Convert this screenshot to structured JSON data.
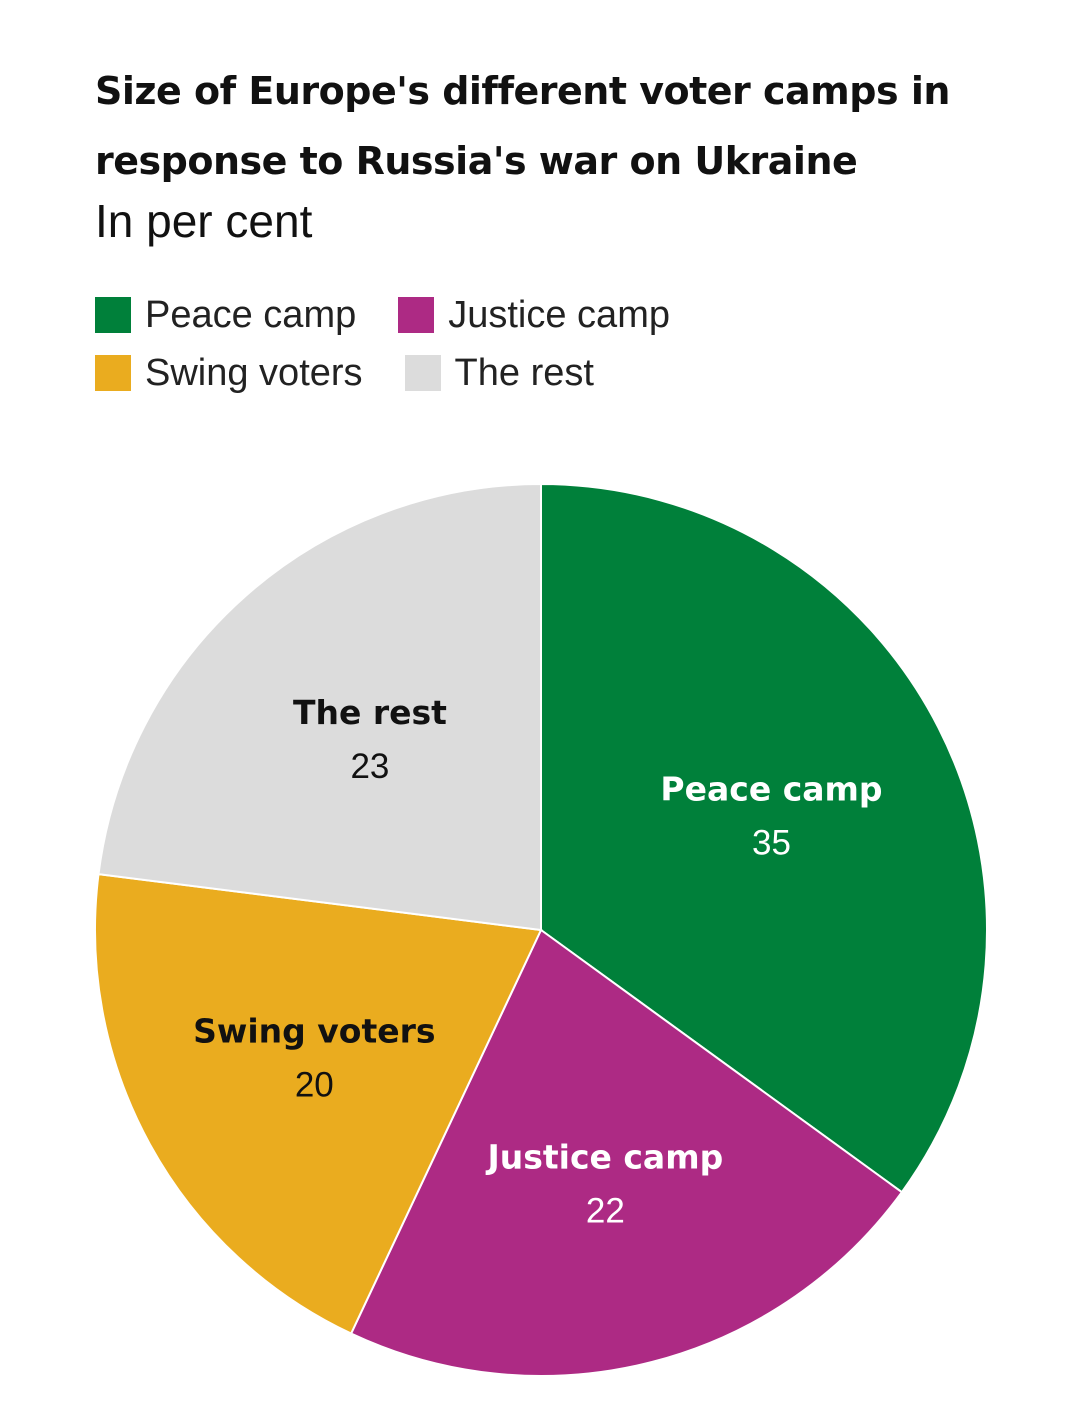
{
  "chart_data": {
    "type": "pie",
    "title": "Size of Europe's different voter camps in response to Russia's war on Ukraine",
    "subtitle": "In per cent",
    "legend_position": "top",
    "slices": [
      {
        "name": "Peace camp",
        "value": 35,
        "color": "#00803A",
        "label_color": "#ffffff"
      },
      {
        "name": "Justice camp",
        "value": 22,
        "color": "#AD2A84",
        "label_color": "#ffffff"
      },
      {
        "name": "Swing voters",
        "value": 20,
        "color": "#EAAC1F",
        "label_color": "#111111"
      },
      {
        "name": "The rest",
        "value": 23,
        "color": "#DCDCDC",
        "label_color": "#111111"
      }
    ]
  }
}
